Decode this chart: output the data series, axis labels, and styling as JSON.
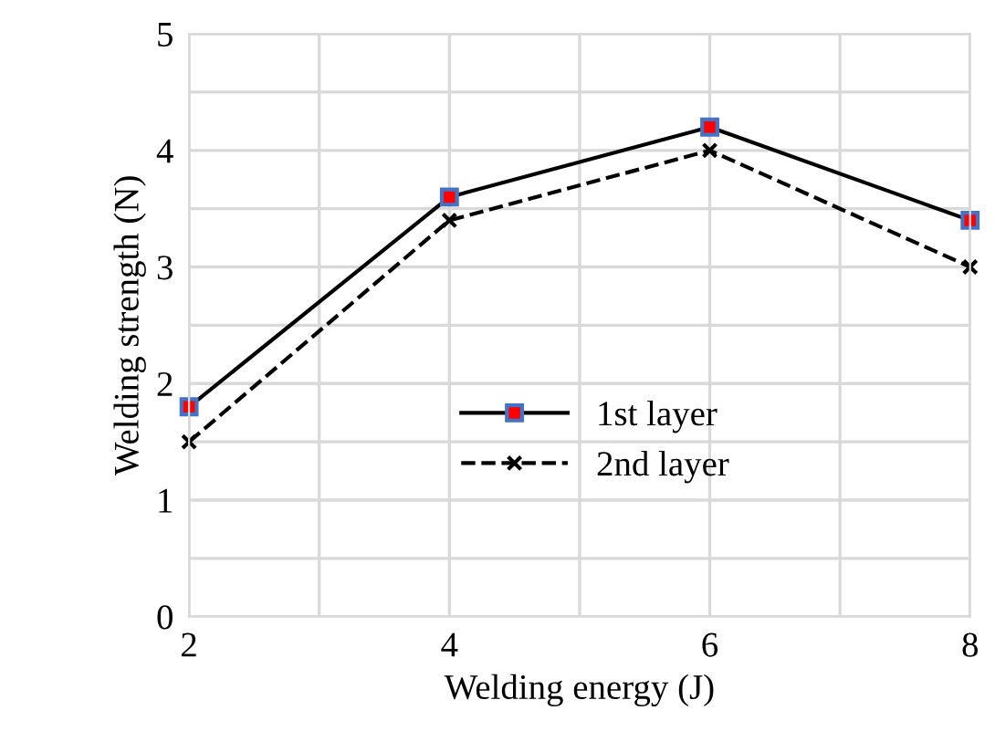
{
  "chart_data": {
    "type": "line",
    "xlabel": "Welding energy (J)",
    "ylabel": "Welding strength (N)",
    "x": [
      2,
      4,
      6,
      8
    ],
    "series": [
      {
        "name": "1st layer",
        "color": "#000000",
        "values": [
          1.8,
          3.6,
          4.2,
          3.4
        ],
        "marker": "square",
        "line_style": "solid"
      },
      {
        "name": "2nd layer",
        "color": "#000000",
        "values": [
          1.5,
          3.4,
          4.0,
          3.0
        ],
        "marker": "cross",
        "line_style": "dashed"
      }
    ],
    "xlim": [
      2,
      8
    ],
    "xticks": [
      2,
      {
        "value": 3,
        "label": null
      },
      4,
      {
        "value": 5,
        "label": null
      },
      6,
      {
        "value": 7,
        "label": null
      },
      8
    ],
    "ylim": [
      0,
      5
    ],
    "yticks": [
      0,
      {
        "value": 0.5,
        "label": null
      },
      1,
      {
        "value": 1.5,
        "label": null
      },
      2,
      {
        "value": 2.5,
        "label": null
      },
      3,
      {
        "value": 3.5,
        "label": null
      },
      4,
      {
        "value": 4.5,
        "label": null
      },
      5
    ],
    "grid": true,
    "legend": "center"
  }
}
